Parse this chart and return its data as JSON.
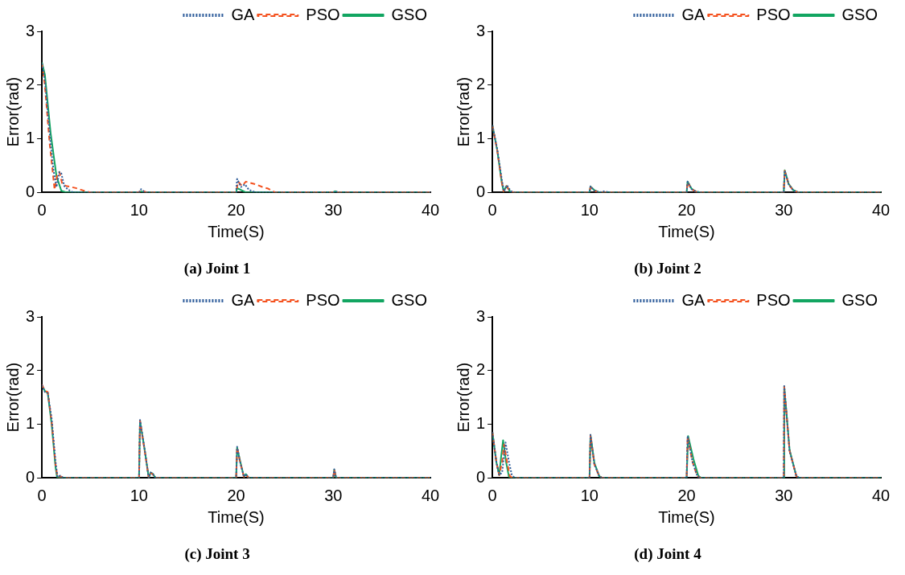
{
  "chart_data": [
    {
      "type": "line",
      "title": "(a) Joint 1",
      "xlabel": "Time(S)",
      "ylabel": "Error(rad)",
      "xlim": [
        0,
        40
      ],
      "xticks": [
        0,
        10,
        20,
        30,
        40
      ],
      "ylim": [
        0,
        3
      ],
      "yticks": [
        0,
        1,
        2,
        3
      ],
      "grid": false,
      "legend": "top right",
      "marker": "none",
      "series": [
        {
          "name": "GA",
          "color": "#2f5d9b",
          "line_style": "dotted",
          "x": [
            0,
            0.3,
            0.9,
            1.2,
            1.5,
            1.8,
            2.0,
            2.3,
            2.7,
            3.2,
            10,
            10.2,
            10.6,
            20,
            20.1,
            20.5,
            20.9,
            21.3,
            22,
            30,
            30.2,
            30.5,
            40
          ],
          "values": [
            2.4,
            2.1,
            0.9,
            0.4,
            0.1,
            0.38,
            0.35,
            0.12,
            0.05,
            0,
            0,
            0.06,
            0,
            0,
            0.25,
            0.1,
            0.15,
            0.05,
            0,
            0,
            0.02,
            0,
            0
          ]
        },
        {
          "name": "PSO",
          "color": "#f4511e",
          "line_style": "dashed",
          "x": [
            0,
            0.3,
            0.8,
            1.1,
            1.3,
            1.6,
            1.8,
            2.1,
            2.5,
            3,
            3.5,
            4,
            4.5,
            5,
            10,
            10.2,
            10.8,
            20,
            20.2,
            20.6,
            21,
            22,
            22.7,
            23.3,
            24,
            40
          ],
          "values": [
            2.4,
            2.0,
            0.9,
            0.4,
            0.05,
            0.35,
            0.38,
            0.15,
            0.12,
            0.1,
            0.08,
            0.05,
            0.02,
            0,
            0,
            0.04,
            0,
            0,
            0.2,
            0.12,
            0.2,
            0.15,
            0.1,
            0.07,
            0,
            0
          ]
        },
        {
          "name": "GSO",
          "color": "#12a561",
          "line_style": "solid",
          "x": [
            0,
            0.3,
            0.9,
            1.5,
            2,
            2.5,
            10,
            10.2,
            10.5,
            20,
            20.1,
            21,
            30,
            30.2,
            30.5,
            40
          ],
          "values": [
            2.42,
            2.2,
            1.1,
            0.3,
            0.03,
            0,
            0,
            0.02,
            0,
            0,
            0.08,
            0,
            0,
            0.02,
            0,
            0
          ]
        }
      ]
    },
    {
      "type": "line",
      "title": "(b) Joint 2",
      "xlabel": "Time(S)",
      "ylabel": "Error(rad)",
      "xlim": [
        0,
        40
      ],
      "xticks": [
        0,
        10,
        20,
        30,
        40
      ],
      "ylim": [
        0,
        3
      ],
      "yticks": [
        0,
        1,
        2,
        3
      ],
      "grid": false,
      "legend": "top right",
      "marker": "none",
      "series": [
        {
          "name": "GA",
          "color": "#2f5d9b",
          "line_style": "dotted",
          "x": [
            0,
            0.5,
            1.0,
            1.2,
            1.5,
            1.9,
            2.3,
            10,
            10.1,
            10.5,
            11,
            11.5,
            12,
            20,
            20.1,
            20.5,
            21,
            21.5,
            30,
            30.1,
            30.5,
            31,
            31.5,
            40
          ],
          "values": [
            1.25,
            0.8,
            0.2,
            0.02,
            0.13,
            0.02,
            0,
            0,
            0.11,
            0.03,
            0,
            0.02,
            0,
            0,
            0.2,
            0.06,
            0.01,
            0,
            0,
            0.41,
            0.15,
            0.03,
            0,
            0
          ]
        },
        {
          "name": "PSO",
          "color": "#f4511e",
          "line_style": "dashed",
          "x": [
            0,
            0.5,
            0.95,
            1.15,
            1.45,
            1.8,
            2.2,
            10,
            10.1,
            10.5,
            11,
            20,
            20.1,
            20.5,
            21,
            21.5,
            30,
            30.1,
            30.5,
            31,
            31.5,
            40
          ],
          "values": [
            1.24,
            0.78,
            0.2,
            0.02,
            0.12,
            0.02,
            0,
            0,
            0.1,
            0.03,
            0,
            0,
            0.19,
            0.06,
            0.01,
            0,
            0,
            0.4,
            0.15,
            0.03,
            0,
            0
          ]
        },
        {
          "name": "GSO",
          "color": "#12a561",
          "line_style": "solid",
          "x": [
            0,
            0.5,
            0.95,
            1.15,
            1.45,
            1.8,
            2.2,
            10,
            10.1,
            10.5,
            11,
            20,
            20.1,
            20.5,
            21,
            21.5,
            30,
            30.1,
            30.5,
            31,
            31.5,
            40
          ],
          "values": [
            1.25,
            0.78,
            0.2,
            0.02,
            0.12,
            0.02,
            0,
            0,
            0.11,
            0.04,
            0,
            0,
            0.2,
            0.07,
            0.01,
            0,
            0,
            0.41,
            0.16,
            0.04,
            0,
            0
          ]
        }
      ]
    },
    {
      "type": "line",
      "title": "(c) Joint 3",
      "xlabel": "Time(S)",
      "ylabel": "Error(rad)",
      "xlim": [
        0,
        40
      ],
      "xticks": [
        0,
        10,
        20,
        30,
        40
      ],
      "ylim": [
        0,
        3
      ],
      "yticks": [
        0,
        1,
        2,
        3
      ],
      "grid": false,
      "legend": "top right",
      "marker": "none",
      "series": [
        {
          "name": "GA",
          "color": "#2f5d9b",
          "line_style": "dotted",
          "x": [
            0,
            0.3,
            0.6,
            1.0,
            1.4,
            1.6,
            1.9,
            2.2,
            10,
            10.1,
            10.6,
            11,
            11.2,
            11.4,
            11.7,
            20,
            20.1,
            20.4,
            20.8,
            21,
            21.3,
            30,
            30.1,
            30.3,
            40
          ],
          "values": [
            1.73,
            1.6,
            1.58,
            1.1,
            0.3,
            0.02,
            0.04,
            0,
            0,
            1.08,
            0.5,
            0,
            0.1,
            0.08,
            0,
            0,
            0.58,
            0.3,
            0.02,
            0.07,
            0,
            0,
            0.16,
            0,
            0
          ]
        },
        {
          "name": "PSO",
          "color": "#f4511e",
          "line_style": "dashed",
          "x": [
            0,
            0.3,
            0.6,
            1.0,
            1.4,
            1.6,
            1.9,
            2.2,
            10,
            10.1,
            10.6,
            11,
            11.2,
            11.4,
            11.7,
            20,
            20.1,
            20.4,
            20.8,
            21,
            21.3,
            30,
            30.1,
            30.3,
            40
          ],
          "values": [
            1.74,
            1.62,
            1.6,
            1.05,
            0.25,
            0.02,
            0.03,
            0,
            0,
            1.07,
            0.48,
            0,
            0.09,
            0.07,
            0,
            0,
            0.57,
            0.3,
            0.02,
            0.06,
            0,
            0,
            0.15,
            0,
            0
          ]
        },
        {
          "name": "GSO",
          "color": "#12a561",
          "line_style": "solid",
          "x": [
            0,
            0.3,
            0.6,
            1.0,
            1.4,
            1.55,
            1.9,
            10,
            10.1,
            10.6,
            11,
            11.2,
            11.4,
            11.7,
            20,
            20.1,
            20.4,
            20.8,
            21,
            21.3,
            30,
            30.1,
            30.3,
            40
          ],
          "values": [
            1.72,
            1.62,
            1.58,
            1.0,
            0.2,
            0.02,
            0,
            0,
            1.06,
            0.5,
            0,
            0.1,
            0.08,
            0,
            0,
            0.56,
            0.32,
            0.02,
            0.07,
            0,
            0,
            0.15,
            0,
            0
          ]
        }
      ]
    },
    {
      "type": "line",
      "title": "(d) Joint 4",
      "xlabel": "Time(S)",
      "ylabel": "Error(rad)",
      "xlim": [
        0,
        40
      ],
      "xticks": [
        0,
        10,
        20,
        30,
        40
      ],
      "ylim": [
        0,
        3
      ],
      "yticks": [
        0,
        1,
        2,
        3
      ],
      "grid": false,
      "legend": "top right",
      "marker": "none",
      "series": [
        {
          "name": "GA",
          "color": "#2f5d9b",
          "line_style": "dotted",
          "x": [
            0,
            0.4,
            0.7,
            1.0,
            1.35,
            1.7,
            2.0,
            2.3,
            10,
            10.1,
            10.5,
            11,
            11.3,
            20,
            20.1,
            20.6,
            21.1,
            21.4,
            30,
            30.05,
            30.6,
            31.3,
            31.6,
            40
          ],
          "values": [
            0.85,
            0.3,
            0.05,
            0.1,
            0.66,
            0.3,
            0.05,
            0,
            0,
            0.8,
            0.25,
            0.03,
            0,
            0,
            0.78,
            0.3,
            0.03,
            0,
            0,
            1.71,
            0.5,
            0.03,
            0,
            0
          ]
        },
        {
          "name": "PSO",
          "color": "#f4511e",
          "line_style": "dashed",
          "x": [
            0,
            0.4,
            0.7,
            1.0,
            1.2,
            1.5,
            1.8,
            2.1,
            10,
            10.1,
            10.5,
            11,
            11.3,
            20,
            20.1,
            20.6,
            21.1,
            21.4,
            30,
            30.05,
            30.6,
            31.3,
            31.6,
            40
          ],
          "values": [
            0.85,
            0.3,
            0.05,
            0.3,
            0.62,
            0.3,
            0.03,
            0,
            0,
            0.8,
            0.25,
            0.03,
            0,
            0,
            0.77,
            0.3,
            0.03,
            0,
            0,
            1.7,
            0.5,
            0.03,
            0,
            0
          ]
        },
        {
          "name": "GSO",
          "color": "#12a561",
          "line_style": "solid",
          "x": [
            0,
            0.4,
            0.7,
            0.9,
            1.1,
            1.4,
            1.7,
            2.0,
            10,
            10.1,
            10.5,
            11,
            11.3,
            20,
            20.15,
            20.7,
            21.2,
            21.5,
            30,
            30.05,
            30.6,
            31.3,
            31.6,
            40
          ],
          "values": [
            0.85,
            0.3,
            0.05,
            0.4,
            0.7,
            0.3,
            0.02,
            0,
            0,
            0.8,
            0.28,
            0.03,
            0,
            0,
            0.78,
            0.35,
            0.04,
            0,
            0,
            1.7,
            0.52,
            0.03,
            0,
            0
          ]
        }
      ]
    }
  ]
}
